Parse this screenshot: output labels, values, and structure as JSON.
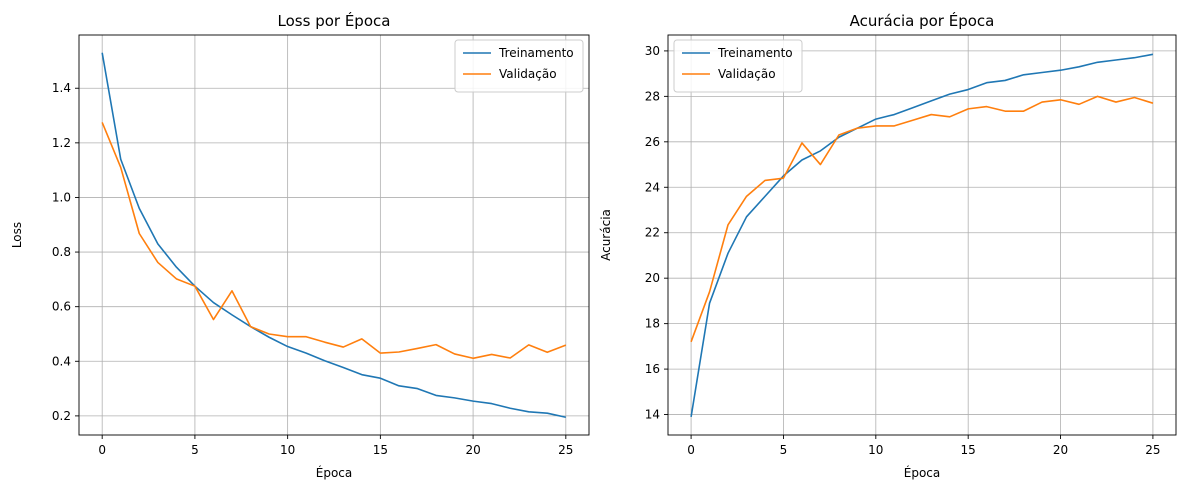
{
  "colors": {
    "train": "#1f77b4",
    "val": "#ff7f0e",
    "grid": "#b0b0b0",
    "axes": "#000000"
  },
  "chart_data": [
    {
      "type": "line",
      "title": "Loss por Época",
      "xlabel": "Época",
      "ylabel": "Loss",
      "xlim": [
        -1.25,
        26.25
      ],
      "ylim": [
        0.13,
        1.595
      ],
      "xticks": [
        0,
        5,
        10,
        15,
        20,
        25
      ],
      "yticks": [
        0.2,
        0.4,
        0.6,
        0.8,
        1.0,
        1.2,
        1.4
      ],
      "ytick_labels": [
        "0.2",
        "0.4",
        "0.6",
        "0.8",
        "1.0",
        "1.2",
        "1.4"
      ],
      "grid": true,
      "legend_position": "top-right",
      "x": [
        0,
        1,
        2,
        3,
        4,
        5,
        6,
        7,
        8,
        9,
        10,
        11,
        12,
        13,
        14,
        15,
        16,
        17,
        18,
        19,
        20,
        21,
        22,
        23,
        24,
        25
      ],
      "series": [
        {
          "name": "Treinamento",
          "color_key": "train",
          "values": [
            1.53,
            1.14,
            0.96,
            0.83,
            0.745,
            0.675,
            0.615,
            0.57,
            0.527,
            0.488,
            0.454,
            0.43,
            0.402,
            0.377,
            0.351,
            0.338,
            0.31,
            0.3,
            0.275,
            0.266,
            0.254,
            0.245,
            0.228,
            0.215,
            0.21,
            0.195
          ]
        },
        {
          "name": "Validação",
          "color_key": "val",
          "values": [
            1.275,
            1.11,
            0.868,
            0.762,
            0.702,
            0.675,
            0.553,
            0.658,
            0.527,
            0.5,
            0.49,
            0.49,
            0.47,
            0.452,
            0.482,
            0.43,
            0.434,
            0.447,
            0.461,
            0.427,
            0.411,
            0.425,
            0.412,
            0.46,
            0.433,
            0.459
          ]
        }
      ]
    },
    {
      "type": "line",
      "title": "Acurácia por Época",
      "xlabel": "Época",
      "ylabel": "Acurácia",
      "xlim": [
        -1.25,
        26.25
      ],
      "ylim": [
        13.1,
        30.7
      ],
      "xticks": [
        0,
        5,
        10,
        15,
        20,
        25
      ],
      "yticks": [
        14,
        16,
        18,
        20,
        22,
        24,
        26,
        28,
        30
      ],
      "ytick_labels": [
        "14",
        "16",
        "18",
        "20",
        "22",
        "24",
        "26",
        "28",
        "30"
      ],
      "grid": true,
      "legend_position": "top-left",
      "x": [
        0,
        1,
        2,
        3,
        4,
        5,
        6,
        7,
        8,
        9,
        10,
        11,
        12,
        13,
        14,
        15,
        16,
        17,
        18,
        19,
        20,
        21,
        22,
        23,
        24,
        25
      ],
      "series": [
        {
          "name": "Treinamento",
          "color_key": "train",
          "values": [
            13.9,
            18.9,
            21.1,
            22.7,
            23.6,
            24.5,
            25.2,
            25.6,
            26.2,
            26.6,
            27.0,
            27.2,
            27.5,
            27.8,
            28.1,
            28.3,
            28.6,
            28.7,
            28.95,
            29.05,
            29.15,
            29.3,
            29.5,
            29.6,
            29.7,
            29.85
          ]
        },
        {
          "name": "Validação",
          "color_key": "val",
          "values": [
            17.2,
            19.4,
            22.35,
            23.6,
            24.3,
            24.4,
            25.95,
            25.0,
            26.3,
            26.6,
            26.7,
            26.7,
            26.95,
            27.2,
            27.1,
            27.45,
            27.55,
            27.35,
            27.35,
            27.75,
            27.85,
            27.65,
            28.0,
            27.75,
            27.95,
            27.7
          ]
        }
      ]
    }
  ]
}
